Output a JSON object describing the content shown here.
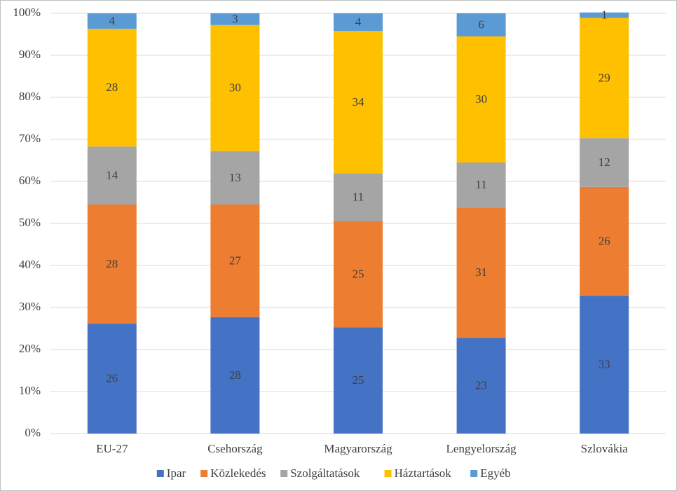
{
  "chart_data": {
    "type": "stacked_bar",
    "categories": [
      "EU-27",
      "Csehország",
      "Magyarország",
      "Lengyelország",
      "Szlovákia"
    ],
    "series": [
      {
        "name": "Ipar",
        "color": "#4472c4",
        "values": [
          26.2,
          27.7,
          25.3,
          22.8,
          32.8
        ],
        "value_labels": [
          "26",
          "28",
          "25",
          "23",
          "33"
        ]
      },
      {
        "name": "Közlekedés",
        "color": "#ed7d31",
        "values": [
          28.3,
          26.8,
          25.2,
          31,
          25.9
        ],
        "value_labels": [
          "28",
          "27",
          "25",
          "31",
          "26"
        ]
      },
      {
        "name": "Szolgáltatások",
        "color": "#a5a5a5",
        "values": [
          13.8,
          12.7,
          11.4,
          10.7,
          11.6
        ],
        "value_labels": [
          "14",
          "13",
          "11",
          "11",
          "12"
        ]
      },
      {
        "name": "Háztartások",
        "color": "#ffc000",
        "values": [
          28,
          30,
          33.9,
          30,
          28.6
        ],
        "value_labels": [
          "28",
          "30",
          "34",
          "30",
          "29"
        ]
      },
      {
        "name": "Egyéb",
        "color": "#5b9bd5",
        "values": [
          3.7,
          2.8,
          4.2,
          5.5,
          1.3
        ],
        "value_labels": [
          "4",
          "3",
          "4",
          "6",
          "1"
        ]
      }
    ],
    "ylim": [
      0,
      100
    ],
    "yticks": [
      {
        "value": 0,
        "label": "0%"
      },
      {
        "value": 10,
        "label": "10%"
      },
      {
        "value": 20,
        "label": "20%"
      },
      {
        "value": 30,
        "label": "30%"
      },
      {
        "value": 40,
        "label": "40%"
      },
      {
        "value": 50,
        "label": "50%"
      },
      {
        "value": 60,
        "label": "60%"
      },
      {
        "value": 70,
        "label": "70%"
      },
      {
        "value": 80,
        "label": "80%"
      },
      {
        "value": 90,
        "label": "90%"
      },
      {
        "value": 100,
        "label": "100%"
      }
    ],
    "grid": true,
    "legend": "bottom"
  }
}
